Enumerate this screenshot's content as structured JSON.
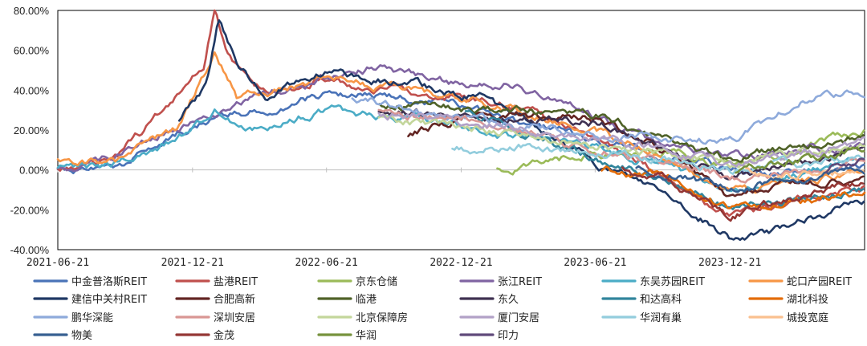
{
  "chart_data": {
    "type": "line",
    "title": "",
    "xlabel": "",
    "ylabel": "",
    "x_range": [
      "2021-06-21",
      "2024-06-21"
    ],
    "x_ticks": [
      "2021-06-21",
      "2021-12-21",
      "2022-06-21",
      "2022-12-21",
      "2023-06-21",
      "2023-12-21"
    ],
    "y_range": [
      -0.4,
      0.8
    ],
    "y_ticks": [
      "-40.00%",
      "-20.00%",
      "0.00%",
      "20.00%",
      "40.00%",
      "60.00%",
      "80.00%"
    ],
    "y_tick_values": [
      -0.4,
      -0.2,
      0.0,
      0.2,
      0.4,
      0.6,
      0.8
    ],
    "grid": false,
    "legend_position": "bottom",
    "series": [
      {
        "name": "中金普洛斯REIT",
        "color": "#4a73b8",
        "start": "2021-06-21",
        "anchors": [
          [
            "2021-06-21",
            0.0
          ],
          [
            "2021-09-10",
            0.02
          ],
          [
            "2021-12-01",
            0.18
          ],
          [
            "2022-02-15",
            0.28
          ],
          [
            "2022-06-21",
            0.38
          ],
          [
            "2022-10-01",
            0.36
          ],
          [
            "2023-01-15",
            0.3
          ],
          [
            "2023-06-21",
            0.15
          ],
          [
            "2023-10-01",
            0.06
          ],
          [
            "2023-12-21",
            0.02
          ],
          [
            "2024-03-01",
            -0.03
          ],
          [
            "2024-06-21",
            0.02
          ]
        ]
      },
      {
        "name": "盐港REIT",
        "color": "#c0504d",
        "start": "2021-06-21",
        "anchors": [
          [
            "2021-06-21",
            0.0
          ],
          [
            "2021-09-10",
            0.08
          ],
          [
            "2021-11-15",
            0.3
          ],
          [
            "2022-01-05",
            0.52
          ],
          [
            "2022-01-20",
            0.82
          ],
          [
            "2022-02-05",
            0.58
          ],
          [
            "2022-03-15",
            0.4
          ],
          [
            "2022-06-21",
            0.45
          ],
          [
            "2022-10-01",
            0.4
          ],
          [
            "2023-01-15",
            0.36
          ],
          [
            "2023-06-21",
            0.18
          ],
          [
            "2023-10-01",
            -0.05
          ],
          [
            "2023-12-21",
            -0.24
          ],
          [
            "2024-03-01",
            -0.18
          ],
          [
            "2024-06-21",
            -0.08
          ]
        ]
      },
      {
        "name": "京东仓储",
        "color": "#9bbb59",
        "start": "2023-02-08",
        "anchors": [
          [
            "2023-02-08",
            0.0
          ],
          [
            "2023-06-21",
            0.08
          ],
          [
            "2023-10-01",
            0.1
          ],
          [
            "2023-12-21",
            0.02
          ],
          [
            "2024-02-01",
            0.05
          ],
          [
            "2024-04-15",
            0.14
          ],
          [
            "2024-06-21",
            0.21
          ]
        ]
      },
      {
        "name": "张江REIT",
        "color": "#8064a2",
        "start": "2021-06-21",
        "anchors": [
          [
            "2021-06-21",
            0.0
          ],
          [
            "2021-09-10",
            0.06
          ],
          [
            "2021-12-01",
            0.22
          ],
          [
            "2022-03-01",
            0.34
          ],
          [
            "2022-06-21",
            0.46
          ],
          [
            "2022-09-01",
            0.52
          ],
          [
            "2022-12-21",
            0.42
          ],
          [
            "2023-03-01",
            0.44
          ],
          [
            "2023-06-21",
            0.26
          ],
          [
            "2023-10-01",
            0.12
          ],
          [
            "2023-12-21",
            0.06
          ],
          [
            "2024-06-21",
            0.12
          ]
        ]
      },
      {
        "name": "东吴苏园REIT",
        "color": "#4bacc6",
        "start": "2021-06-21",
        "anchors": [
          [
            "2021-06-21",
            0.0
          ],
          [
            "2021-09-10",
            0.03
          ],
          [
            "2021-12-01",
            0.16
          ],
          [
            "2022-01-20",
            0.3
          ],
          [
            "2022-03-01",
            0.2
          ],
          [
            "2022-06-21",
            0.3
          ],
          [
            "2022-10-01",
            0.26
          ],
          [
            "2023-01-15",
            0.2
          ],
          [
            "2023-06-21",
            0.1
          ],
          [
            "2023-10-01",
            0.02
          ],
          [
            "2023-12-21",
            -0.1
          ],
          [
            "2024-03-01",
            -0.04
          ],
          [
            "2024-06-21",
            0.06
          ]
        ]
      },
      {
        "name": "蛇口产园REIT",
        "color": "#f79646",
        "start": "2021-06-21",
        "anchors": [
          [
            "2021-06-21",
            0.04
          ],
          [
            "2021-09-10",
            0.04
          ],
          [
            "2021-12-01",
            0.2
          ],
          [
            "2022-01-20",
            0.58
          ],
          [
            "2022-02-20",
            0.36
          ],
          [
            "2022-06-21",
            0.46
          ],
          [
            "2022-10-01",
            0.4
          ],
          [
            "2023-01-15",
            0.34
          ],
          [
            "2023-06-21",
            0.2
          ],
          [
            "2023-10-01",
            0.06
          ],
          [
            "2023-12-21",
            -0.12
          ],
          [
            "2024-03-01",
            -0.08
          ],
          [
            "2024-06-21",
            -0.02
          ]
        ]
      },
      {
        "name": "建信中关村REIT",
        "color": "#1f3864",
        "start": "2021-12-03",
        "anchors": [
          [
            "2021-12-03",
            0.26
          ],
          [
            "2022-01-10",
            0.42
          ],
          [
            "2022-01-25",
            0.74
          ],
          [
            "2022-02-25",
            0.5
          ],
          [
            "2022-04-01",
            0.38
          ],
          [
            "2022-06-21",
            0.5
          ],
          [
            "2022-10-01",
            0.44
          ],
          [
            "2023-01-15",
            0.36
          ],
          [
            "2023-06-21",
            0.04
          ],
          [
            "2023-10-01",
            -0.12
          ],
          [
            "2023-12-21",
            -0.34
          ],
          [
            "2024-03-01",
            -0.3
          ],
          [
            "2024-06-21",
            -0.15
          ]
        ]
      },
      {
        "name": "合肥高新",
        "color": "#632523",
        "start": "2022-10-10",
        "anchors": [
          [
            "2022-10-10",
            0.18
          ],
          [
            "2023-01-15",
            0.28
          ],
          [
            "2023-06-21",
            0.26
          ],
          [
            "2023-10-01",
            0.1
          ],
          [
            "2023-12-21",
            -0.14
          ],
          [
            "2024-03-01",
            -0.08
          ],
          [
            "2024-06-21",
            -0.04
          ]
        ]
      },
      {
        "name": "临港",
        "color": "#4f6228",
        "start": "2022-09-01",
        "anchors": [
          [
            "2022-09-01",
            0.34
          ],
          [
            "2023-01-15",
            0.3
          ],
          [
            "2023-06-21",
            0.28
          ],
          [
            "2023-10-01",
            0.14
          ],
          [
            "2023-12-21",
            0.06
          ],
          [
            "2024-03-01",
            0.1
          ],
          [
            "2024-06-21",
            0.16
          ]
        ]
      },
      {
        "name": "东久",
        "color": "#3f3151",
        "start": "2022-08-31",
        "anchors": [
          [
            "2022-08-31",
            0.3
          ],
          [
            "2023-01-15",
            0.26
          ],
          [
            "2023-06-21",
            0.24
          ],
          [
            "2023-10-01",
            0.1
          ],
          [
            "2023-12-21",
            -0.02
          ],
          [
            "2024-03-01",
            0.02
          ],
          [
            "2024-06-21",
            0.1
          ]
        ]
      },
      {
        "name": "和达高科",
        "color": "#31859c",
        "start": "2022-12-27",
        "anchors": [
          [
            "2022-12-27",
            0.3
          ],
          [
            "2023-03-01",
            0.2
          ],
          [
            "2023-06-21",
            0.06
          ],
          [
            "2023-10-01",
            -0.04
          ],
          [
            "2023-12-21",
            -0.18
          ],
          [
            "2024-03-01",
            -0.16
          ],
          [
            "2024-06-21",
            -0.1
          ]
        ]
      },
      {
        "name": "湖北科投",
        "color": "#e36c09",
        "start": "2023-06-30",
        "anchors": [
          [
            "2023-06-30",
            0.0
          ],
          [
            "2023-10-01",
            -0.04
          ],
          [
            "2023-12-21",
            -0.2
          ],
          [
            "2024-03-01",
            -0.18
          ],
          [
            "2024-06-21",
            -0.1
          ]
        ]
      },
      {
        "name": "鹏华深能",
        "color": "#8eaadb",
        "start": "2022-07-26",
        "anchors": [
          [
            "2022-07-26",
            0.36
          ],
          [
            "2022-12-21",
            0.26
          ],
          [
            "2023-06-21",
            0.18
          ],
          [
            "2023-10-01",
            0.16
          ],
          [
            "2023-12-21",
            0.14
          ],
          [
            "2024-03-01",
            0.3
          ],
          [
            "2024-04-30",
            0.4
          ],
          [
            "2024-06-21",
            0.37
          ]
        ]
      },
      {
        "name": "深圳安居",
        "color": "#d99694",
        "start": "2022-08-31",
        "anchors": [
          [
            "2022-08-31",
            0.3
          ],
          [
            "2023-01-15",
            0.24
          ],
          [
            "2023-06-21",
            0.1
          ],
          [
            "2023-10-01",
            0.04
          ],
          [
            "2023-12-21",
            -0.04
          ],
          [
            "2024-03-01",
            -0.02
          ],
          [
            "2024-06-21",
            0.04
          ]
        ]
      },
      {
        "name": "北京保障房",
        "color": "#c3d69b",
        "start": "2022-08-31",
        "anchors": [
          [
            "2022-08-31",
            0.26
          ],
          [
            "2023-01-15",
            0.2
          ],
          [
            "2023-06-21",
            0.14
          ],
          [
            "2023-10-01",
            0.08
          ],
          [
            "2023-12-21",
            0.04
          ],
          [
            "2024-03-01",
            0.08
          ],
          [
            "2024-06-21",
            0.12
          ]
        ]
      },
      {
        "name": "厦门安居",
        "color": "#b2a1c7",
        "start": "2022-08-31",
        "anchors": [
          [
            "2022-08-31",
            0.28
          ],
          [
            "2023-01-15",
            0.24
          ],
          [
            "2023-06-21",
            0.16
          ],
          [
            "2023-10-01",
            0.1
          ],
          [
            "2023-12-21",
            0.02
          ],
          [
            "2024-03-01",
            0.06
          ],
          [
            "2024-06-21",
            0.14
          ]
        ]
      },
      {
        "name": "华润有巢",
        "color": "#93cddd",
        "start": "2022-12-09",
        "anchors": [
          [
            "2022-12-09",
            0.1
          ],
          [
            "2023-03-01",
            0.12
          ],
          [
            "2023-06-21",
            0.08
          ],
          [
            "2023-10-01",
            0.06
          ],
          [
            "2023-12-21",
            -0.02
          ],
          [
            "2024-03-01",
            0.02
          ],
          [
            "2024-06-21",
            0.06
          ]
        ]
      },
      {
        "name": "城投宽庭",
        "color": "#fac08f",
        "start": "2024-01-12",
        "anchors": [
          [
            "2024-01-12",
            0.0
          ],
          [
            "2024-03-01",
            -0.04
          ],
          [
            "2024-05-01",
            -0.02
          ],
          [
            "2024-06-21",
            0.02
          ]
        ]
      },
      {
        "name": "物美",
        "color": "#365f91",
        "start": "2023-08-16",
        "anchors": [
          [
            "2023-08-16",
            0.0
          ],
          [
            "2023-10-01",
            -0.02
          ],
          [
            "2023-12-21",
            -0.1
          ],
          [
            "2024-03-01",
            -0.06
          ],
          [
            "2024-06-21",
            0.0
          ]
        ]
      },
      {
        "name": "金茂",
        "color": "#943634",
        "start": "2023-07-28",
        "anchors": [
          [
            "2023-07-28",
            0.0
          ],
          [
            "2023-10-01",
            -0.06
          ],
          [
            "2023-12-21",
            -0.22
          ],
          [
            "2024-03-01",
            -0.16
          ],
          [
            "2024-06-21",
            -0.06
          ]
        ]
      },
      {
        "name": "华润",
        "color": "#76923c",
        "start": "2023-12-29",
        "anchors": [
          [
            "2023-12-29",
            0.0
          ],
          [
            "2024-02-01",
            0.02
          ],
          [
            "2024-04-15",
            0.06
          ],
          [
            "2024-06-21",
            0.1
          ]
        ]
      },
      {
        "name": "印力",
        "color": "#5f497a",
        "start": "2024-04-30",
        "anchors": [
          [
            "2024-04-30",
            0.0
          ],
          [
            "2024-05-20",
            0.02
          ],
          [
            "2024-06-21",
            0.04
          ]
        ]
      }
    ]
  }
}
